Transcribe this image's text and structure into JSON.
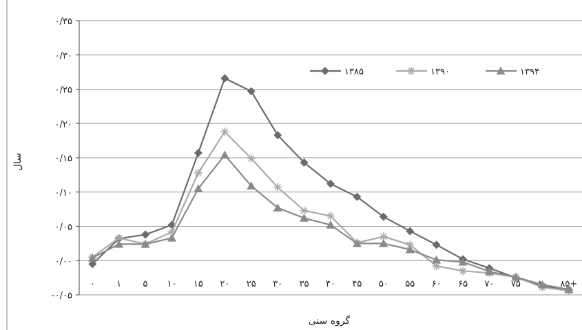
{
  "chart_data": {
    "type": "line",
    "categories": [
      "۰",
      "۱",
      "۵",
      "۱۰",
      "۱۵",
      "۲۰",
      "۲۵",
      "۳۰",
      "۳۵",
      "۴۰",
      "۴۵",
      "۵۰",
      "۵۵",
      "۶۰",
      "۶۵",
      "۷۰",
      "۷۵",
      "۸۰",
      "۸۵+"
    ],
    "series": [
      {
        "name": "۱۳۸۵",
        "marker": "diamond",
        "color": "#6b6b6b",
        "values": [
          -0.005,
          0.032,
          0.038,
          0.052,
          0.157,
          0.266,
          0.247,
          0.183,
          0.143,
          0.112,
          0.093,
          0.064,
          0.043,
          0.023,
          0.002,
          -0.011,
          -0.025,
          -0.037,
          -0.042
        ]
      },
      {
        "name": "۱۳۹۰",
        "marker": "star",
        "color": "#a9a9a9",
        "values": [
          0.005,
          0.033,
          0.024,
          0.042,
          0.128,
          0.188,
          0.149,
          0.107,
          0.073,
          0.065,
          0.026,
          0.035,
          0.023,
          -0.008,
          -0.015,
          -0.018,
          -0.024,
          -0.039,
          -0.044
        ]
      },
      {
        "name": "۱۳۹۴",
        "marker": "triangle",
        "color": "#8a8a8a",
        "values": [
          0.004,
          0.024,
          0.024,
          0.033,
          0.105,
          0.154,
          0.109,
          0.077,
          0.062,
          0.052,
          0.025,
          0.025,
          0.016,
          0.001,
          -0.002,
          -0.016,
          -0.024,
          -0.035,
          -0.042
        ]
      }
    ],
    "ylabel": "سال",
    "xlabel": "گروه سنی",
    "ylim": [
      -0.05,
      0.35
    ],
    "yticks": [
      -0.05,
      0.0,
      0.05,
      0.1,
      0.15,
      0.2,
      0.25,
      0.3,
      0.35
    ],
    "ytick_labels": [
      "-۰/۰۵",
      "۰/۰۰",
      "۰/۰۵",
      "۰/۱۰",
      "۰/۱۵",
      "۰/۲۰",
      "۰/۲۵",
      "۰/۳۰",
      "۰/۳۵"
    ],
    "grid": true,
    "legend": "top-right"
  }
}
